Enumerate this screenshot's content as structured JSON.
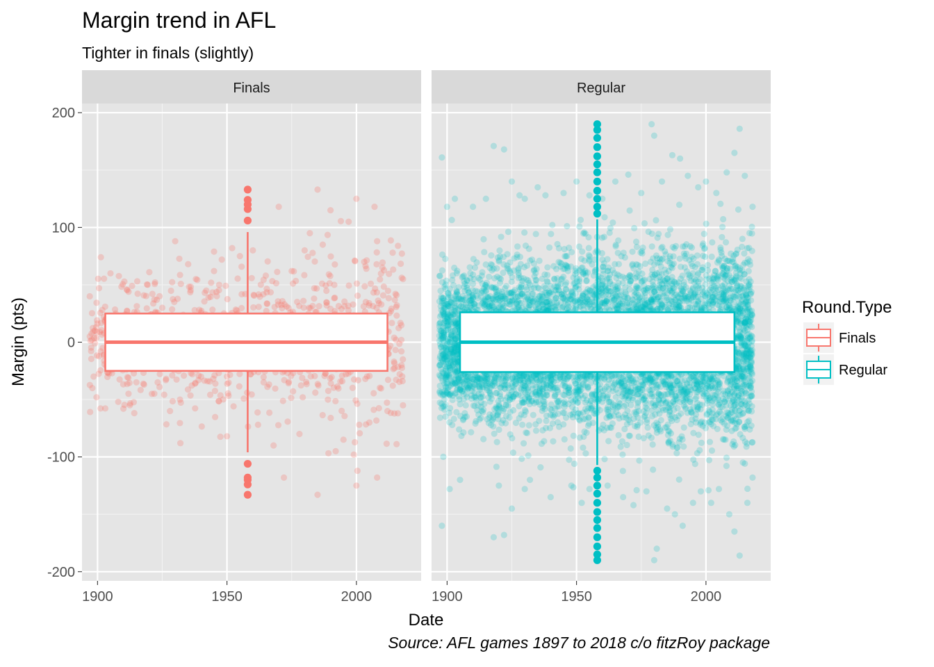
{
  "chart_data": {
    "type": "scatter",
    "overlay": "boxplot",
    "title": "Margin trend in AFL",
    "subtitle": "Tighter in finals (slightly)",
    "caption": "Source: AFL games 1897 to 2018 c/o fitzRoy package",
    "xlabel": "Date",
    "ylabel": "Margin (pts)",
    "xlim": [
      1894,
      2025
    ],
    "ylim": [
      -208,
      208
    ],
    "xticks": [
      1900,
      1950,
      2000
    ],
    "xtick_labels": [
      "1900",
      "1950",
      "2000"
    ],
    "yticks": [
      200,
      100,
      0,
      -100,
      -200
    ],
    "ytick_labels": [
      "200",
      "100",
      "0",
      "-100",
      "-200"
    ],
    "grid": true,
    "legend_position": "right",
    "legend_title": "Round.Type",
    "facets": [
      {
        "name": "Finals",
        "color": "#F8766D",
        "x_range": [
          1897,
          2018
        ],
        "y_spread": 38,
        "point_count": 900,
        "box": {
          "x_from": 1903,
          "x_to": 2012,
          "x_median": 1958,
          "q1": -25,
          "median": 0,
          "q3": 25,
          "whisker_low": -96,
          "whisker_high": 96
        },
        "outliers_y": [
          133,
          124,
          120,
          116,
          106,
          -106,
          -118,
          -120,
          -124,
          -133
        ],
        "points": [
          [
            1897,
            40
          ],
          [
            1898,
            -40
          ],
          [
            1897,
            5
          ],
          [
            1899,
            10
          ],
          [
            1902,
            -5
          ],
          [
            1905,
            60
          ],
          [
            1907,
            25
          ],
          [
            1908,
            -52
          ],
          [
            1910,
            -58
          ],
          [
            1912,
            44
          ],
          [
            1915,
            -35
          ],
          [
            1920,
            61
          ],
          [
            1925,
            30
          ],
          [
            1928,
            -60
          ],
          [
            1930,
            88
          ],
          [
            1932,
            -88
          ],
          [
            1935,
            68
          ],
          [
            1938,
            55
          ],
          [
            1940,
            -30
          ],
          [
            1942,
            45
          ],
          [
            1945,
            62
          ],
          [
            1948,
            72
          ],
          [
            1950,
            -82
          ],
          [
            1952,
            82
          ],
          [
            1955,
            75
          ],
          [
            1960,
            80
          ],
          [
            1962,
            -72
          ],
          [
            1965,
            58
          ],
          [
            1968,
            -90
          ],
          [
            1970,
            118
          ],
          [
            1972,
            -118
          ],
          [
            1975,
            62
          ],
          [
            1978,
            -80
          ],
          [
            1980,
            80
          ],
          [
            1982,
            95
          ],
          [
            1985,
            133
          ],
          [
            1985,
            -133
          ],
          [
            1987,
            85
          ],
          [
            1990,
            115
          ],
          [
            1992,
            -95
          ],
          [
            1995,
            -85
          ],
          [
            1997,
            105
          ],
          [
            1999,
            -98
          ],
          [
            2000,
            125
          ],
          [
            2000,
            -125
          ],
          [
            2003,
            70
          ],
          [
            2005,
            -70
          ],
          [
            2007,
            118
          ],
          [
            2008,
            88
          ],
          [
            2008,
            -118
          ],
          [
            2010,
            65
          ],
          [
            2012,
            -60
          ],
          [
            2014,
            78
          ],
          [
            2016,
            -62
          ],
          [
            2018,
            55
          ],
          [
            2018,
            -55
          ]
        ]
      },
      {
        "name": "Regular",
        "color": "#00BFC4",
        "x_range": [
          1897,
          2018
        ],
        "y_spread": 42,
        "point_count": 6500,
        "box": {
          "x_from": 1905,
          "x_to": 2011,
          "x_median": 1958,
          "q1": -26,
          "median": 0,
          "q3": 26,
          "whisker_low": -107,
          "whisker_high": 107
        },
        "outliers_y": [
          190,
          185,
          178,
          170,
          162,
          155,
          148,
          140,
          132,
          125,
          118,
          112,
          -112,
          -118,
          -125,
          -132,
          -140,
          -148,
          -155,
          -162,
          -170,
          -178,
          -185,
          -190
        ],
        "points": [
          [
            1898,
            161
          ],
          [
            1898,
            -160
          ],
          [
            1900,
            118
          ],
          [
            1901,
            -128
          ],
          [
            1903,
            125
          ],
          [
            1905,
            -120
          ],
          [
            1910,
            118
          ],
          [
            1915,
            125
          ],
          [
            1918,
            171
          ],
          [
            1918,
            -170
          ],
          [
            1920,
            -125
          ],
          [
            1922,
            168
          ],
          [
            1922,
            -168
          ],
          [
            1925,
            140
          ],
          [
            1925,
            -145
          ],
          [
            1928,
            128
          ],
          [
            1930,
            125
          ],
          [
            1930,
            -128
          ],
          [
            1932,
            -120
          ],
          [
            1935,
            135
          ],
          [
            1938,
            128
          ],
          [
            1940,
            -135
          ],
          [
            1945,
            130
          ],
          [
            1948,
            -125
          ],
          [
            1950,
            140
          ],
          [
            1952,
            -140
          ],
          [
            1955,
            128
          ],
          [
            1955,
            -128
          ],
          [
            1960,
            125
          ],
          [
            1962,
            -125
          ],
          [
            1965,
            140
          ],
          [
            1968,
            -135
          ],
          [
            1970,
            146
          ],
          [
            1972,
            -142
          ],
          [
            1975,
            130
          ],
          [
            1977,
            -130
          ],
          [
            1979,
            190
          ],
          [
            1980,
            -190
          ],
          [
            1980,
            180
          ],
          [
            1981,
            -180
          ],
          [
            1983,
            140
          ],
          [
            1985,
            -145
          ],
          [
            1987,
            163
          ],
          [
            1988,
            -150
          ],
          [
            1990,
            160
          ],
          [
            1991,
            -160
          ],
          [
            1993,
            145
          ],
          [
            1995,
            -140
          ],
          [
            1997,
            135
          ],
          [
            1998,
            -130
          ],
          [
            2000,
            140
          ],
          [
            2002,
            -140
          ],
          [
            2004,
            130
          ],
          [
            2005,
            -128
          ],
          [
            2008,
            148
          ],
          [
            2009,
            -150
          ],
          [
            2011,
            165
          ],
          [
            2011,
            -165
          ],
          [
            2013,
            186
          ],
          [
            2013,
            -186
          ],
          [
            2015,
            145
          ],
          [
            2016,
            -140
          ],
          [
            2018,
            118
          ],
          [
            2018,
            -118
          ]
        ]
      }
    ]
  }
}
